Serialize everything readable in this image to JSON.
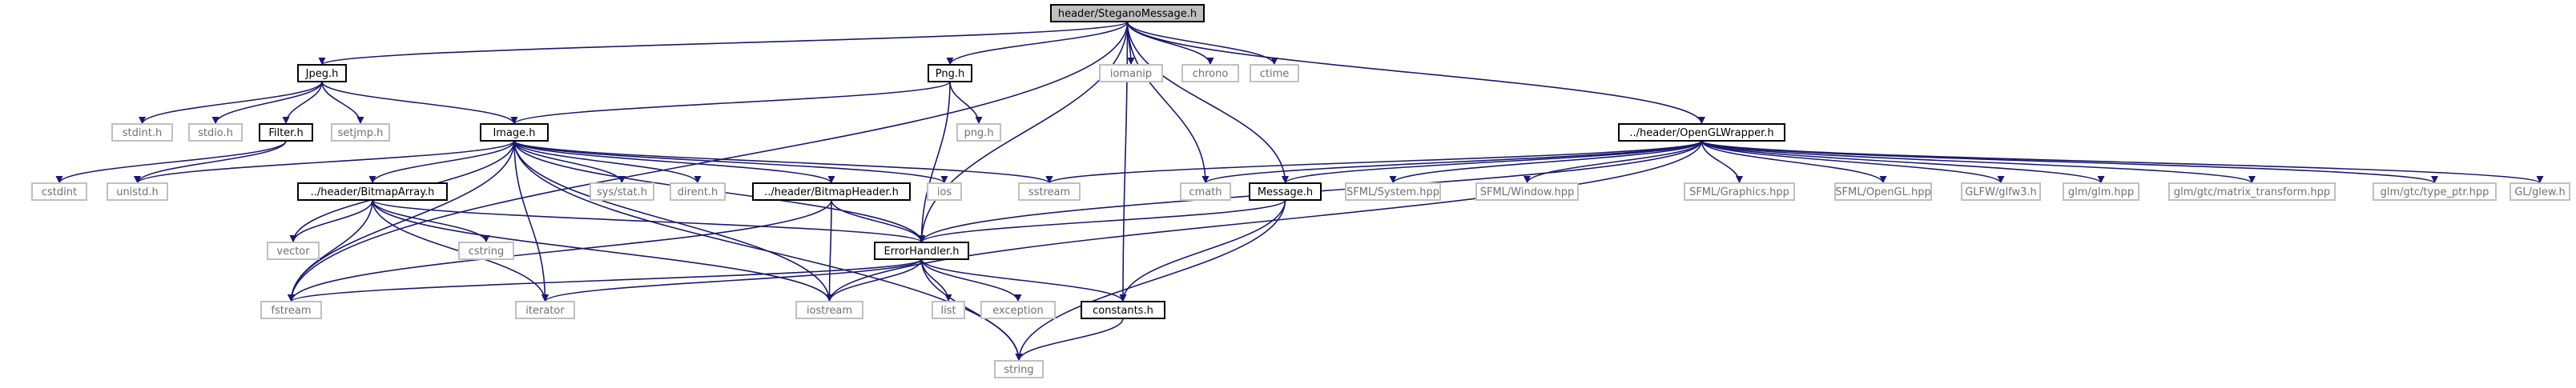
{
  "colors": {
    "edge": "#191970",
    "root_fill": "#bfbfbf",
    "project_border": "#000000",
    "system_border": "#bfbfbf",
    "system_text": "#707070",
    "project_text": "#000000",
    "background": "#ffffff"
  },
  "nodes": [
    {
      "id": "root",
      "label": "header/SteganoMessage.h",
      "kind": "root"
    },
    {
      "id": "jpeg",
      "label": "Jpeg.h",
      "kind": "project"
    },
    {
      "id": "png",
      "label": "Png.h",
      "kind": "project"
    },
    {
      "id": "iomanip",
      "label": "iomanip",
      "kind": "system"
    },
    {
      "id": "chrono",
      "label": "chrono",
      "kind": "system"
    },
    {
      "id": "ctime",
      "label": "ctime",
      "kind": "system"
    },
    {
      "id": "oglw",
      "label": "../header/OpenGLWrapper.h",
      "kind": "project"
    },
    {
      "id": "stdint",
      "label": "stdint.h",
      "kind": "system"
    },
    {
      "id": "stdio",
      "label": "stdio.h",
      "kind": "system"
    },
    {
      "id": "filter",
      "label": "Filter.h",
      "kind": "project"
    },
    {
      "id": "setjmp",
      "label": "setjmp.h",
      "kind": "system"
    },
    {
      "id": "pngh",
      "label": "png.h",
      "kind": "system"
    },
    {
      "id": "image",
      "label": "Image.h",
      "kind": "project"
    },
    {
      "id": "cstdint",
      "label": "cstdint",
      "kind": "system"
    },
    {
      "id": "unistd",
      "label": "unistd.h",
      "kind": "system"
    },
    {
      "id": "bmparray",
      "label": "../header/BitmapArray.h",
      "kind": "project"
    },
    {
      "id": "sysstat",
      "label": "sys/stat.h",
      "kind": "system"
    },
    {
      "id": "dirent",
      "label": "dirent.h",
      "kind": "system"
    },
    {
      "id": "bmpheader",
      "label": "../header/BitmapHeader.h",
      "kind": "project"
    },
    {
      "id": "ios",
      "label": "ios",
      "kind": "system"
    },
    {
      "id": "sstream",
      "label": "sstream",
      "kind": "system"
    },
    {
      "id": "cmath",
      "label": "cmath",
      "kind": "system"
    },
    {
      "id": "message",
      "label": "Message.h",
      "kind": "project"
    },
    {
      "id": "sfmlsystem",
      "label": "SFML/System.hpp",
      "kind": "system"
    },
    {
      "id": "sfmlwindow",
      "label": "SFML/Window.hpp",
      "kind": "system"
    },
    {
      "id": "sfmlgraphics",
      "label": "SFML/Graphics.hpp",
      "kind": "system"
    },
    {
      "id": "sfmlopengl",
      "label": "SFML/OpenGL.hpp",
      "kind": "system"
    },
    {
      "id": "glfw",
      "label": "GLFW/glfw3.h",
      "kind": "system"
    },
    {
      "id": "glm",
      "label": "glm/glm.hpp",
      "kind": "system"
    },
    {
      "id": "glmmat",
      "label": "glm/gtc/matrix_transform.hpp",
      "kind": "system"
    },
    {
      "id": "glmtype",
      "label": "glm/gtc/type_ptr.hpp",
      "kind": "system"
    },
    {
      "id": "glew",
      "label": "GL/glew.h",
      "kind": "system"
    },
    {
      "id": "vector",
      "label": "vector",
      "kind": "system"
    },
    {
      "id": "cstring",
      "label": "cstring",
      "kind": "system"
    },
    {
      "id": "errorhandler",
      "label": "ErrorHandler.h",
      "kind": "project"
    },
    {
      "id": "fstream",
      "label": "fstream",
      "kind": "system"
    },
    {
      "id": "iterator",
      "label": "iterator",
      "kind": "system"
    },
    {
      "id": "iostream",
      "label": "iostream",
      "kind": "system"
    },
    {
      "id": "list",
      "label": "list",
      "kind": "system"
    },
    {
      "id": "exception",
      "label": "exception",
      "kind": "system"
    },
    {
      "id": "constants",
      "label": "constants.h",
      "kind": "project"
    },
    {
      "id": "string",
      "label": "string",
      "kind": "system"
    }
  ],
  "edges": [
    [
      "root",
      "jpeg"
    ],
    [
      "root",
      "png"
    ],
    [
      "root",
      "iomanip"
    ],
    [
      "root",
      "chrono"
    ],
    [
      "root",
      "ctime"
    ],
    [
      "root",
      "oglw"
    ],
    [
      "root",
      "message"
    ],
    [
      "root",
      "cmath"
    ],
    [
      "root",
      "errorhandler"
    ],
    [
      "root",
      "constants"
    ],
    [
      "root",
      "fstream"
    ],
    [
      "jpeg",
      "stdint"
    ],
    [
      "jpeg",
      "stdio"
    ],
    [
      "jpeg",
      "filter"
    ],
    [
      "jpeg",
      "setjmp"
    ],
    [
      "jpeg",
      "image"
    ],
    [
      "png",
      "pngh"
    ],
    [
      "png",
      "image"
    ],
    [
      "png",
      "errorhandler"
    ],
    [
      "filter",
      "cstdint"
    ],
    [
      "filter",
      "unistd"
    ],
    [
      "image",
      "unistd"
    ],
    [
      "image",
      "bmparray"
    ],
    [
      "image",
      "sysstat"
    ],
    [
      "image",
      "dirent"
    ],
    [
      "image",
      "bmpheader"
    ],
    [
      "image",
      "ios"
    ],
    [
      "image",
      "sstream"
    ],
    [
      "image",
      "vector"
    ],
    [
      "image",
      "fstream"
    ],
    [
      "image",
      "iterator"
    ],
    [
      "image",
      "iostream"
    ],
    [
      "image",
      "string"
    ],
    [
      "image",
      "errorhandler"
    ],
    [
      "bmparray",
      "vector"
    ],
    [
      "bmparray",
      "cstring"
    ],
    [
      "bmparray",
      "fstream"
    ],
    [
      "bmparray",
      "iterator"
    ],
    [
      "bmparray",
      "iostream"
    ],
    [
      "bmparray",
      "errorhandler"
    ],
    [
      "bmpheader",
      "errorhandler"
    ],
    [
      "bmpheader",
      "iostream"
    ],
    [
      "bmpheader",
      "fstream"
    ],
    [
      "oglw",
      "sstream"
    ],
    [
      "oglw",
      "cmath"
    ],
    [
      "oglw",
      "sfmlsystem"
    ],
    [
      "oglw",
      "sfmlwindow"
    ],
    [
      "oglw",
      "sfmlgraphics"
    ],
    [
      "oglw",
      "sfmlopengl"
    ],
    [
      "oglw",
      "glfw"
    ],
    [
      "oglw",
      "glm"
    ],
    [
      "oglw",
      "glmmat"
    ],
    [
      "oglw",
      "glmtype"
    ],
    [
      "oglw",
      "glew"
    ],
    [
      "oglw",
      "errorhandler"
    ],
    [
      "oglw",
      "iostream"
    ],
    [
      "oglw",
      "message"
    ],
    [
      "message",
      "errorhandler"
    ],
    [
      "message",
      "constants"
    ],
    [
      "message",
      "string"
    ],
    [
      "errorhandler",
      "fstream"
    ],
    [
      "errorhandler",
      "iterator"
    ],
    [
      "errorhandler",
      "iostream"
    ],
    [
      "errorhandler",
      "list"
    ],
    [
      "errorhandler",
      "exception"
    ],
    [
      "errorhandler",
      "constants"
    ],
    [
      "errorhandler",
      "string"
    ],
    [
      "constants",
      "string"
    ]
  ]
}
